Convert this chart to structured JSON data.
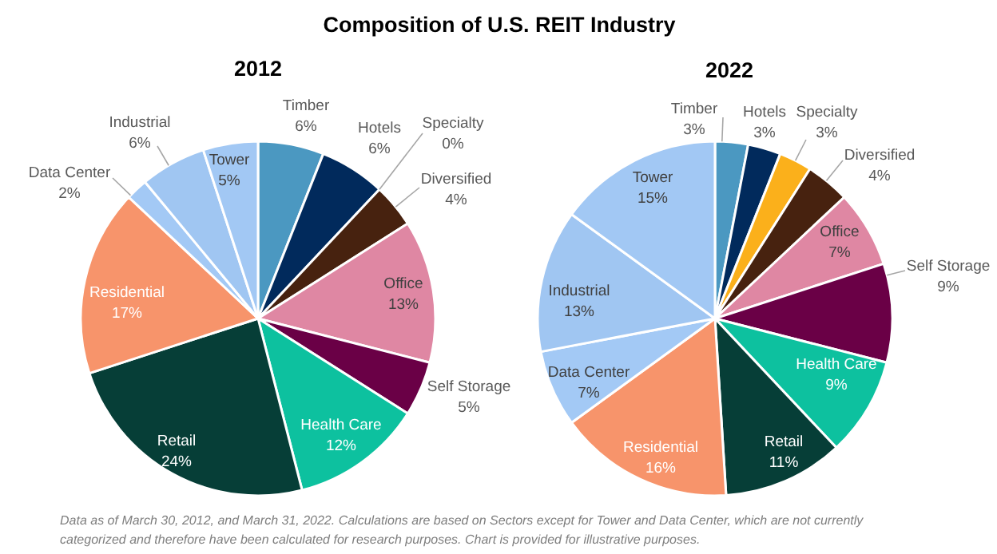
{
  "chart_data": [
    {
      "type": "other",
      "title": "Composition of U.S. REIT Industry",
      "annotations": [
        "Data as of March 30, 2012, and March 31, 2022. Calculations are based on Sectors except for Tower and Data Center, which are not currently categorized and therefore have been calculated for research purposes. Chart is provided for illustrative purposes."
      ]
    },
    {
      "type": "pie",
      "title": "2012",
      "categories": [
        "Timber",
        "Hotels",
        "Specialty",
        "Diversified",
        "Office",
        "Self Storage",
        "Health Care",
        "Retail",
        "Residential",
        "Data Center",
        "Industrial",
        "Tower"
      ],
      "values": [
        6,
        6,
        0,
        4,
        13,
        5,
        12,
        24,
        17,
        2,
        6,
        5
      ],
      "value_labels": [
        "6%",
        "6%",
        "0%",
        "4%",
        "13%",
        "5%",
        "12%",
        "24%",
        "17%",
        "2%",
        "6%",
        "5%"
      ],
      "colors": [
        "#4b98c1",
        "#012a5c",
        "#fbb01b",
        "#47220f",
        "#df87a3",
        "#6a0046",
        "#0dc19f",
        "#063e37",
        "#f7946b",
        "#a3c9f5",
        "#a0c6f2",
        "#a2c8f4"
      ]
    },
    {
      "type": "pie",
      "title": "2022",
      "categories": [
        "Timber",
        "Hotels",
        "Specialty",
        "Diversified",
        "Office",
        "Self Storage",
        "Health Care",
        "Retail",
        "Residential",
        "Data Center",
        "Industrial",
        "Tower"
      ],
      "values": [
        3,
        3,
        3,
        4,
        7,
        9,
        9,
        11,
        16,
        7,
        13,
        15
      ],
      "value_labels": [
        "3%",
        "3%",
        "3%",
        "4%",
        "7%",
        "9%",
        "9%",
        "11%",
        "16%",
        "7%",
        "13%",
        "15%"
      ],
      "colors": [
        "#4b98c1",
        "#012a5c",
        "#fbb01b",
        "#47220f",
        "#df87a3",
        "#6a0046",
        "#0dc19f",
        "#063e37",
        "#f7946b",
        "#a3c9f5",
        "#a0c6f2",
        "#a2c8f4"
      ]
    }
  ]
}
